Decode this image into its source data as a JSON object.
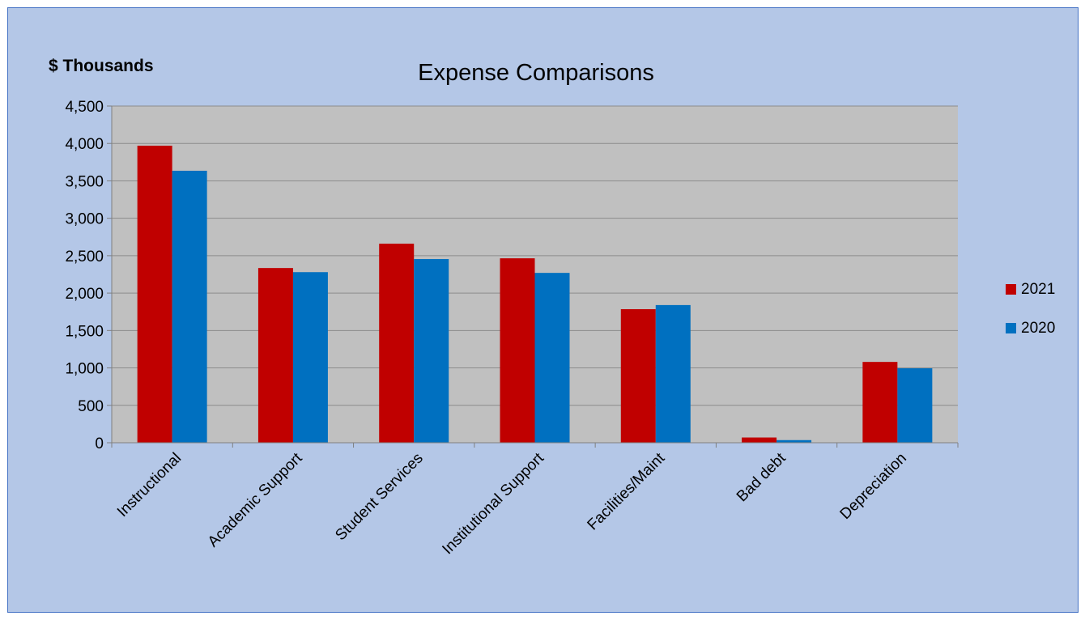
{
  "chart_data": {
    "type": "bar",
    "title": "Expense Comparisons",
    "ylabel": "$ Thousands",
    "xlabel": "",
    "categories": [
      "Instructional",
      "Academic Support",
      "Student Services",
      "Institutional Support",
      "Facilities/Maint",
      "Bad debt",
      "Depreciation"
    ],
    "series": [
      {
        "name": "2021",
        "color": "#c00000",
        "values": [
          3970,
          2335,
          2660,
          2465,
          1785,
          70,
          1080
        ]
      },
      {
        "name": "2020",
        "color": "#0070c0",
        "values": [
          3635,
          2280,
          2455,
          2270,
          1840,
          35,
          995
        ]
      }
    ],
    "ylim": [
      0,
      4500
    ],
    "yticks": [
      0,
      500,
      1000,
      1500,
      2000,
      2500,
      3000,
      3500,
      4000,
      4500
    ],
    "ytick_labels": [
      "0",
      "500",
      "1,000",
      "1,500",
      "2,000",
      "2,500",
      "3,000",
      "3,500",
      "4,000",
      "4,500"
    ],
    "grid": true,
    "legend_position": "right",
    "plot_background": "#c0c0c0",
    "chart_background": "#b4c7e7"
  }
}
